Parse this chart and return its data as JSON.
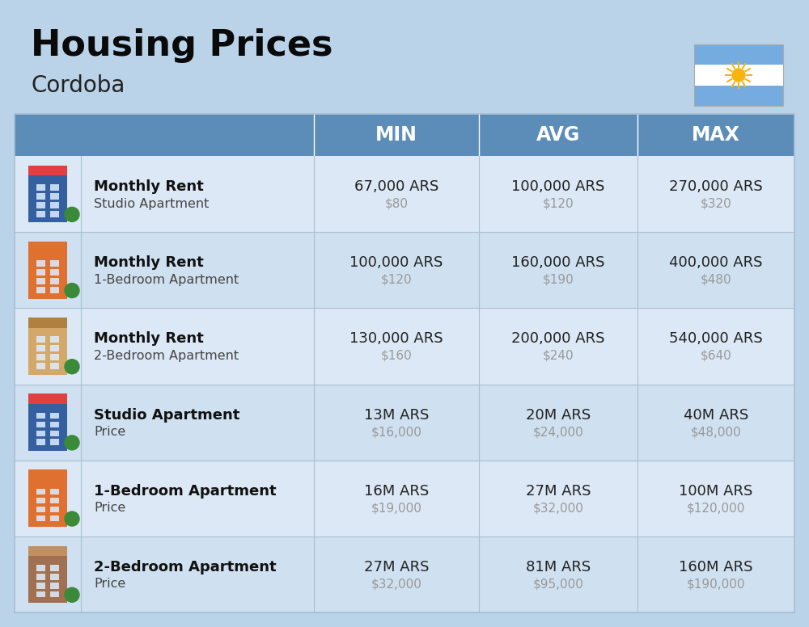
{
  "title": "Housing Prices",
  "subtitle": "Cordoba",
  "bg_color": "#bad3e8",
  "header_bg_color": "#5b8db8",
  "header_text_color": "#ffffff",
  "row_bg_color_odd": "#dce8f5",
  "row_bg_color_even": "#cfe0f0",
  "rows": [
    {
      "icon": "building_blue_red",
      "label_bold": "Monthly Rent",
      "label_normal": "Studio Apartment",
      "min_main": "67,000 ARS",
      "min_sub": "$80",
      "avg_main": "100,000 ARS",
      "avg_sub": "$120",
      "max_main": "270,000 ARS",
      "max_sub": "$320"
    },
    {
      "icon": "building_orange",
      "label_bold": "Monthly Rent",
      "label_normal": "1-Bedroom Apartment",
      "min_main": "100,000 ARS",
      "min_sub": "$120",
      "avg_main": "160,000 ARS",
      "avg_sub": "$190",
      "max_main": "400,000 ARS",
      "max_sub": "$480"
    },
    {
      "icon": "building_beige",
      "label_bold": "Monthly Rent",
      "label_normal": "2-Bedroom Apartment",
      "min_main": "130,000 ARS",
      "min_sub": "$160",
      "avg_main": "200,000 ARS",
      "avg_sub": "$240",
      "max_main": "540,000 ARS",
      "max_sub": "$640"
    },
    {
      "icon": "building_blue_red",
      "label_bold": "Studio Apartment",
      "label_normal": "Price",
      "min_main": "13M ARS",
      "min_sub": "$16,000",
      "avg_main": "20M ARS",
      "avg_sub": "$24,000",
      "max_main": "40M ARS",
      "max_sub": "$48,000"
    },
    {
      "icon": "building_orange",
      "label_bold": "1-Bedroom Apartment",
      "label_normal": "Price",
      "min_main": "16M ARS",
      "min_sub": "$19,000",
      "avg_main": "27M ARS",
      "avg_sub": "$32,000",
      "max_main": "100M ARS",
      "max_sub": "$120,000"
    },
    {
      "icon": "building_brown",
      "label_bold": "2-Bedroom Apartment",
      "label_normal": "Price",
      "min_main": "27M ARS",
      "min_sub": "$32,000",
      "avg_main": "81M ARS",
      "avg_sub": "$95,000",
      "max_main": "160M ARS",
      "max_sub": "$190,000"
    }
  ],
  "divider_color": "#a8bfd4",
  "main_text_color": "#222222",
  "sub_text_color": "#999999",
  "label_bold_color": "#111111",
  "label_normal_color": "#444444",
  "flag_colors": [
    "#74ACDF",
    "#FFFFFF",
    "#74ACDF"
  ],
  "sun_color": "#F6B40E"
}
